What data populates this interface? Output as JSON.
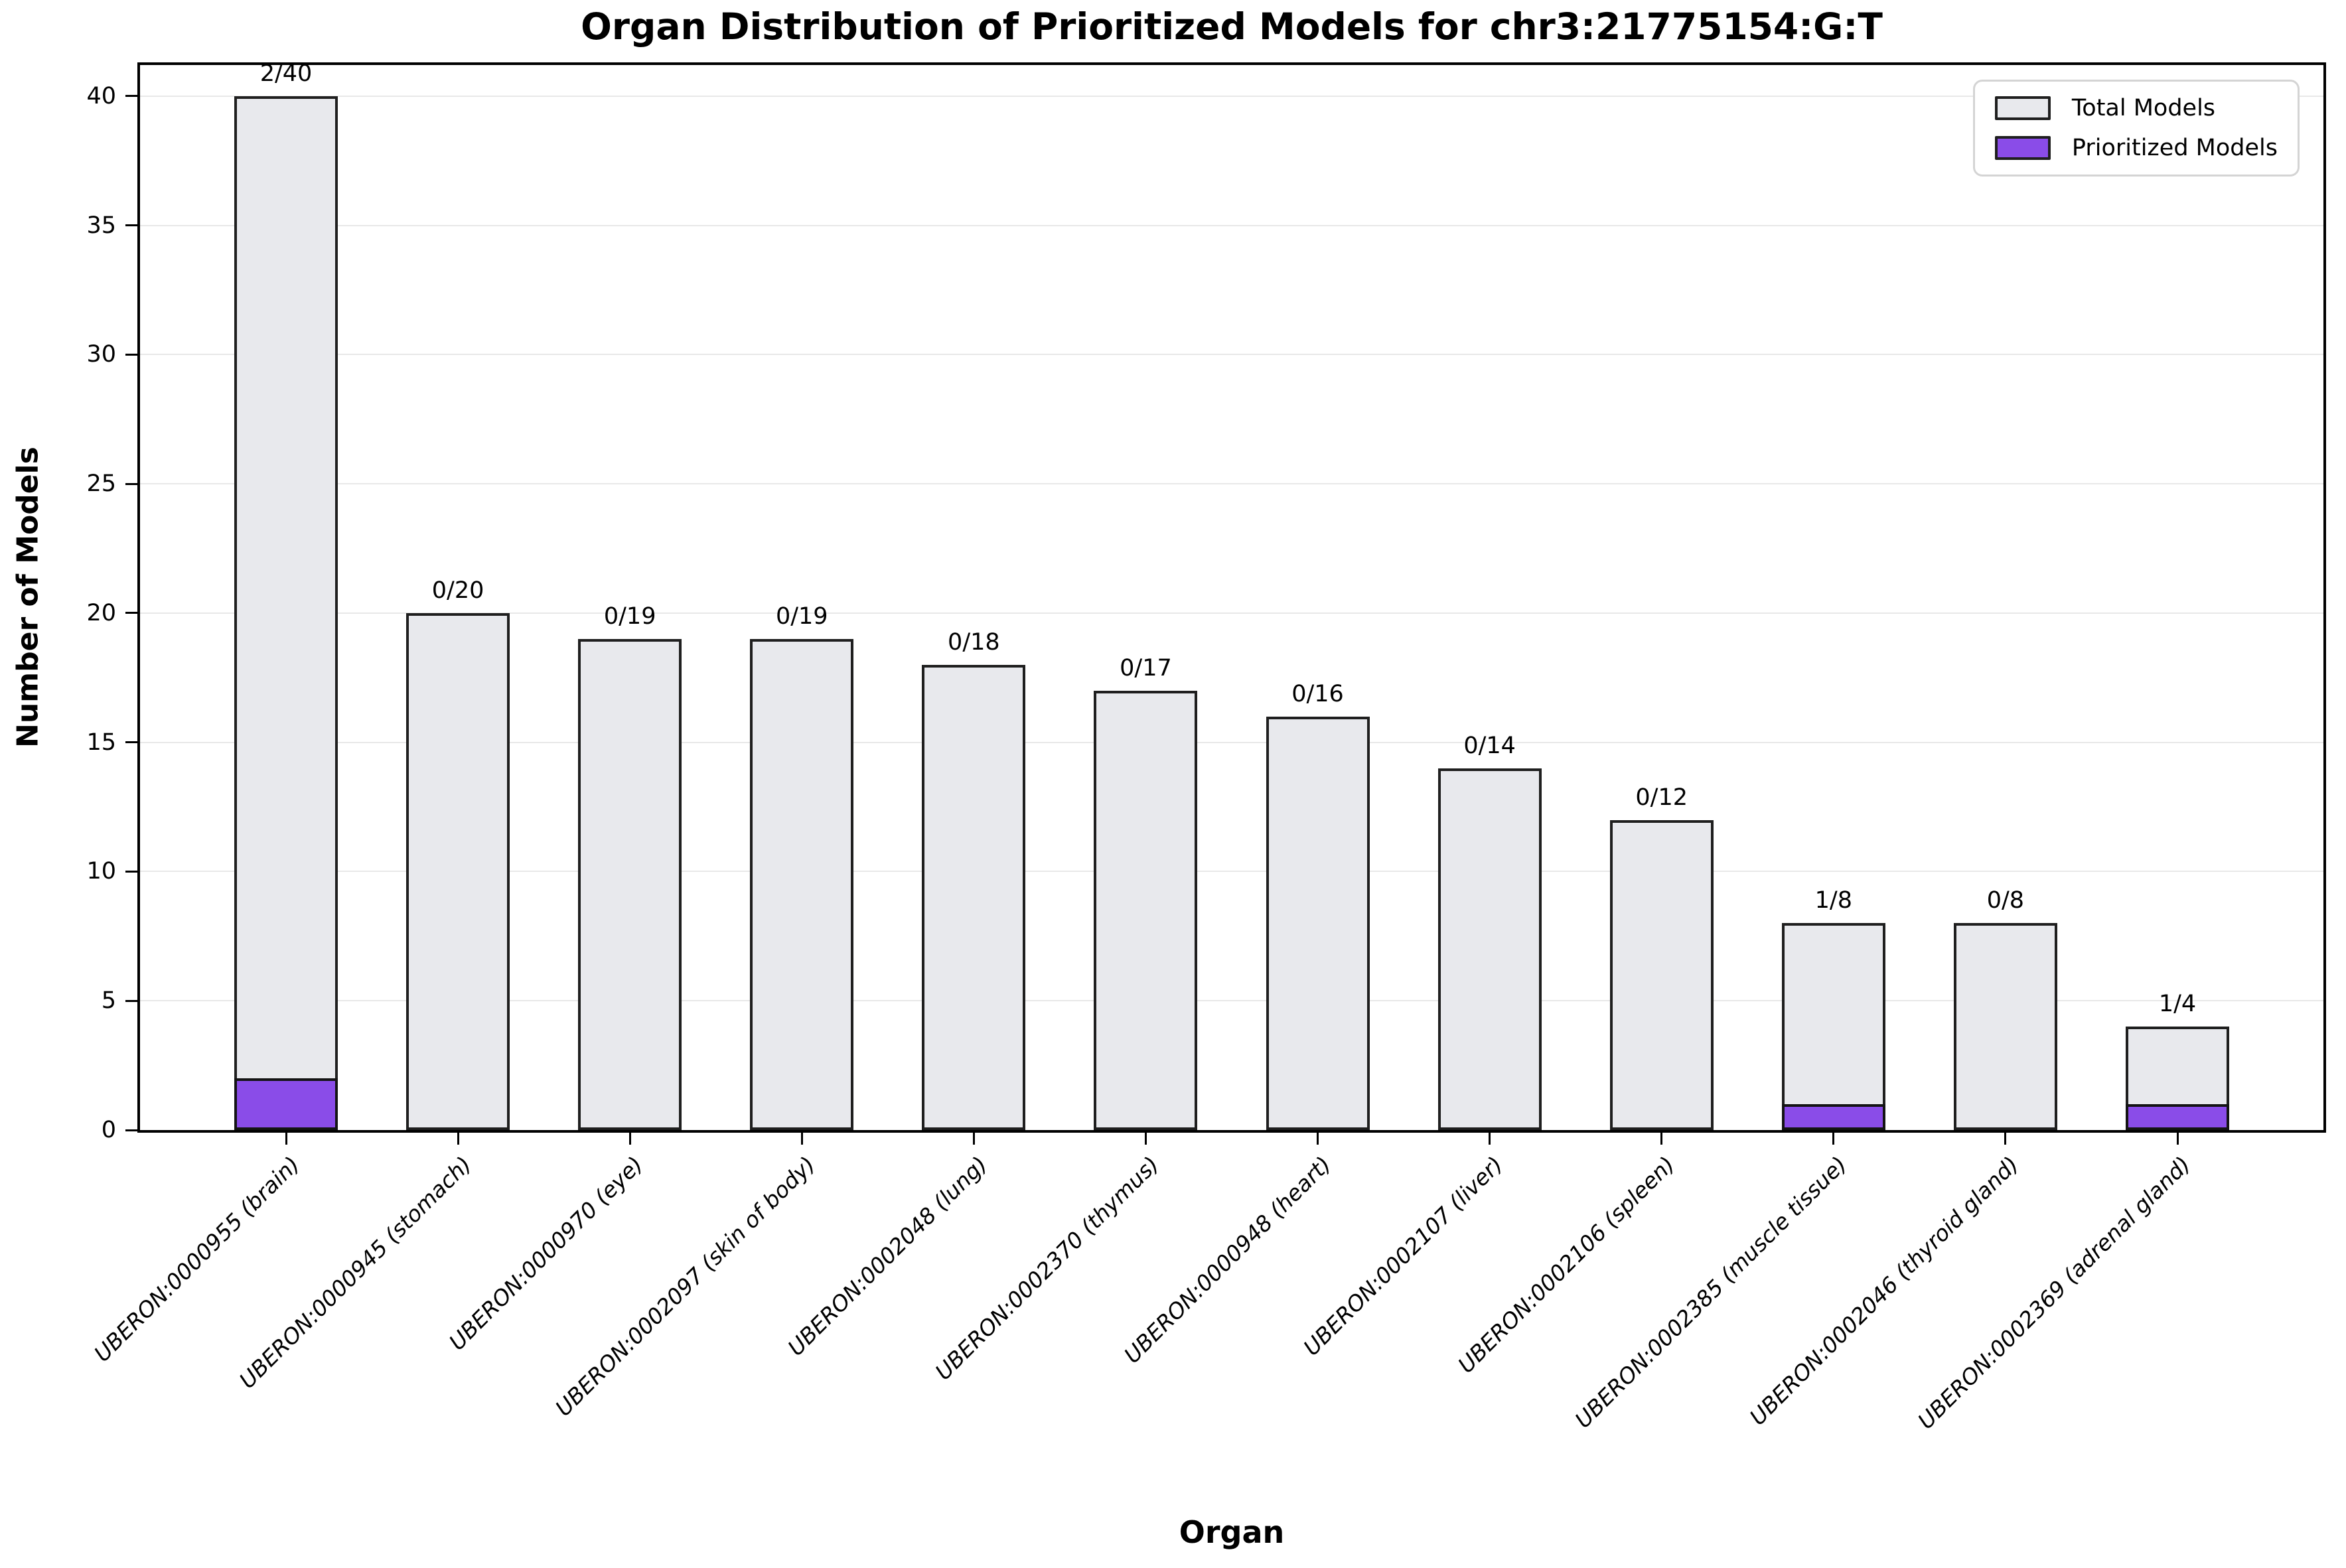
{
  "chart_data": {
    "type": "bar",
    "stacked": true,
    "title": "Organ Distribution of Prioritized Models for chr3:21775154:G:T",
    "xlabel": "Organ",
    "ylabel": "Number of Models",
    "ylim": [
      0,
      41.2
    ],
    "yticks": [
      0,
      5,
      10,
      15,
      20,
      25,
      30,
      35,
      40
    ],
    "grid": "horizontal",
    "legend_position": "upper right",
    "categories": [
      "UBERON:0000955 (brain)",
      "UBERON:0000945 (stomach)",
      "UBERON:0000970 (eye)",
      "UBERON:0002097 (skin of body)",
      "UBERON:0002048 (lung)",
      "UBERON:0002370 (thymus)",
      "UBERON:0000948 (heart)",
      "UBERON:0002107 (liver)",
      "UBERON:0002106 (spleen)",
      "UBERON:0002385 (muscle tissue)",
      "UBERON:0002046 (thyroid gland)",
      "UBERON:0002369 (adrenal gland)"
    ],
    "series": [
      {
        "name": "Total Models",
        "color": "#E8E9ED",
        "values": [
          40,
          20,
          19,
          19,
          18,
          17,
          16,
          14,
          12,
          8,
          8,
          4
        ]
      },
      {
        "name": "Prioritized Models",
        "color": "#8A4CE8",
        "values": [
          2,
          0,
          0,
          0,
          0,
          0,
          0,
          0,
          0,
          1,
          0,
          1
        ]
      }
    ],
    "bar_labels": [
      "2/40",
      "0/20",
      "0/19",
      "0/19",
      "0/18",
      "0/17",
      "0/16",
      "0/14",
      "0/12",
      "1/8",
      "0/8",
      "1/4"
    ],
    "edge_color": "#1F1F1F"
  }
}
